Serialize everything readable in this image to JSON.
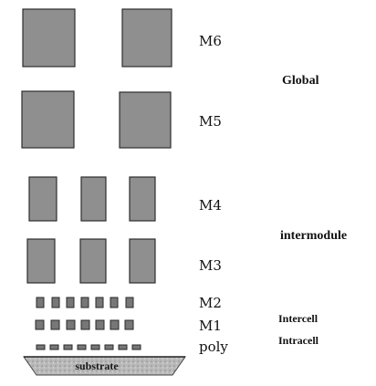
{
  "layer_labels": {
    "m6": "M6",
    "m5": "M5",
    "m4": "M4",
    "m3": "M3",
    "m2": "M2",
    "m1": "M1",
    "poly": "poly"
  },
  "category_labels": {
    "global": "Global",
    "intermodule": "intermodule",
    "intercell": "Intercell",
    "intracell": "Intracell"
  },
  "substrate_label": "substrate"
}
